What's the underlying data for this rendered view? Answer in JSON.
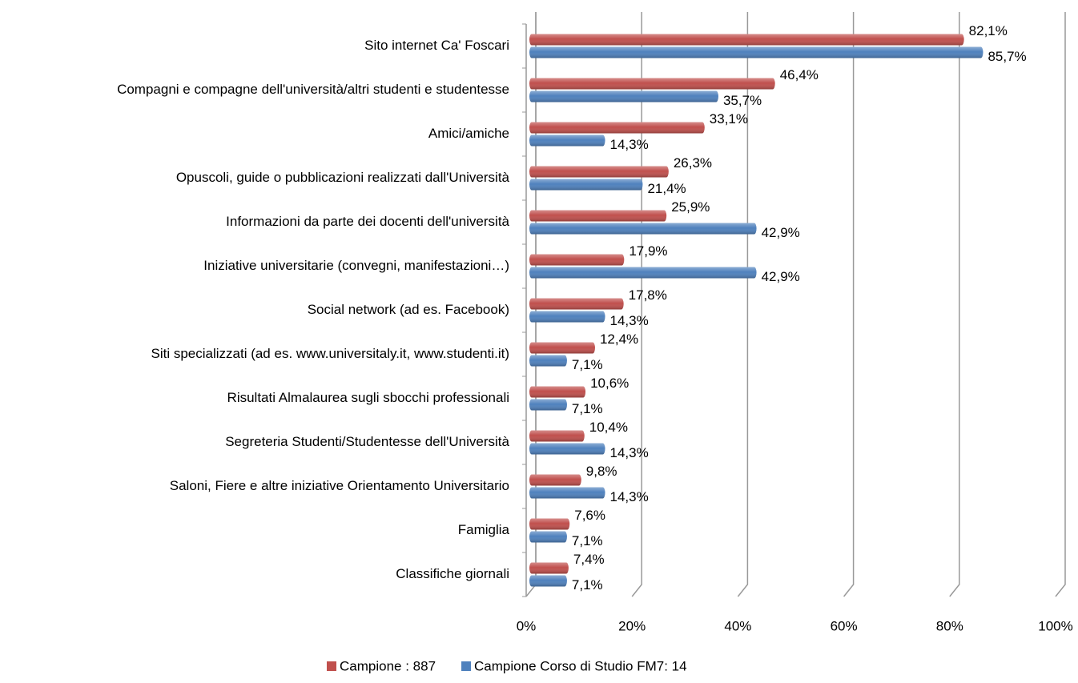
{
  "chart_data": {
    "type": "bar",
    "orientation": "horizontal",
    "categories": [
      "Sito internet Ca' Foscari",
      "Compagni e compagne dell'università/altri studenti e studentesse",
      "Amici/amiche",
      "Opuscoli, guide o pubblicazioni realizzati dall'Università",
      "Informazioni da parte dei docenti dell'università",
      "Iniziative universitarie (convegni, manifestazioni…)",
      "Social network (ad es. Facebook)",
      "Siti specializzati (ad es. www.universitaly.it, www.studenti.it)",
      "Risultati Almalaurea sugli sbocchi professionali",
      "Segreteria Studenti/Studentesse dell'Università",
      "Saloni, Fiere e altre iniziative Orientamento Universitario",
      "Famiglia",
      "Classifiche giornali"
    ],
    "series": [
      {
        "name": "Campione : 887",
        "color": "#c0504d",
        "values": [
          82.1,
          46.4,
          33.1,
          26.3,
          25.9,
          17.9,
          17.8,
          12.4,
          10.6,
          10.4,
          9.8,
          7.6,
          7.4
        ],
        "value_labels": [
          "82,1%",
          "46,4%",
          "33,1%",
          "26,3%",
          "25,9%",
          "17,9%",
          "17,8%",
          "12,4%",
          "10,6%",
          "10,4%",
          "9,8%",
          "7,6%",
          "7,4%"
        ]
      },
      {
        "name": "Campione Corso di Studio FM7: 14",
        "color": "#4f81bd",
        "values": [
          85.7,
          35.7,
          14.3,
          21.4,
          42.9,
          42.9,
          14.3,
          7.1,
          7.1,
          14.3,
          14.3,
          7.1,
          7.1
        ],
        "value_labels": [
          "85,7%",
          "35,7%",
          "14,3%",
          "21,4%",
          "42,9%",
          "42,9%",
          "14,3%",
          "7,1%",
          "7,1%",
          "14,3%",
          "14,3%",
          "7,1%",
          "7,1%"
        ]
      }
    ],
    "xlim": [
      0,
      100
    ],
    "xticks": [
      {
        "value": 0,
        "label": "0%"
      },
      {
        "value": 20,
        "label": "20%"
      },
      {
        "value": 40,
        "label": "40%"
      },
      {
        "value": 60,
        "label": "60%"
      },
      {
        "value": 80,
        "label": "80%"
      },
      {
        "value": 100,
        "label": "100%"
      }
    ],
    "grid": true,
    "legend": "bottom"
  }
}
